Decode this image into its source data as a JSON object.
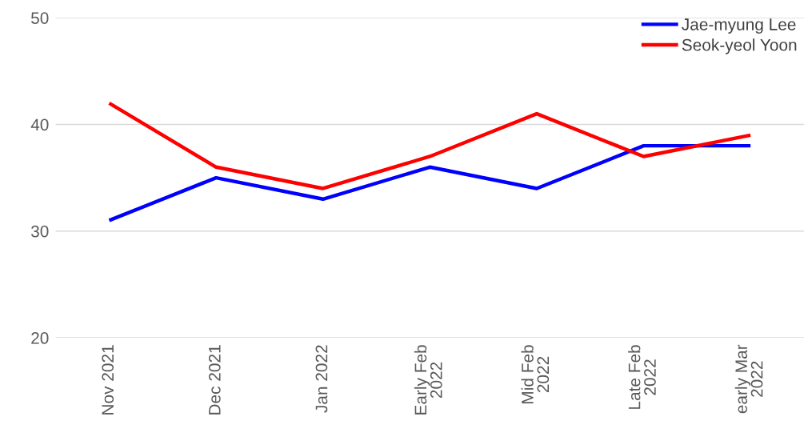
{
  "chart_data": {
    "type": "line",
    "categories": [
      "Nov 2021",
      "Dec 2021",
      "Jan 2022",
      "Early Feb\n2022",
      "Mid Feb\n2022",
      "Late Feb\n2022",
      "early Mar\n2022"
    ],
    "series": [
      {
        "name": "Jae-myung Lee",
        "color": "#0000ff",
        "values": [
          31,
          35,
          33,
          36,
          34,
          38,
          38
        ]
      },
      {
        "name": "Seok-yeol Yoon",
        "color": "#ff0000",
        "values": [
          42,
          36,
          34,
          37,
          41,
          37,
          39
        ]
      }
    ],
    "ylim": [
      20,
      50
    ],
    "yticks": [
      20,
      30,
      40,
      50
    ],
    "grid": "y",
    "legend": "top right",
    "marker": "none",
    "line_style": "solid"
  }
}
